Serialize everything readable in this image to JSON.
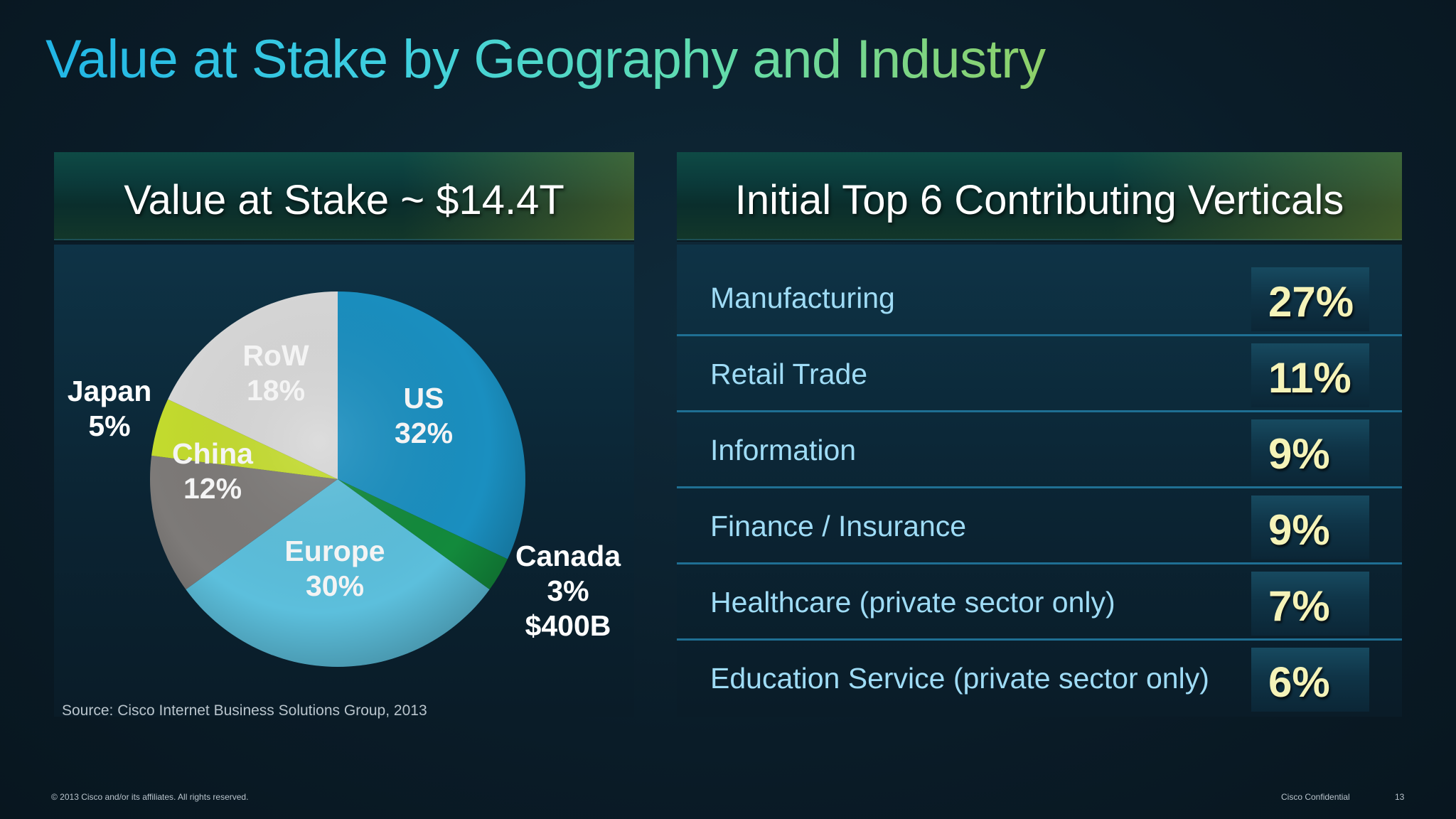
{
  "title": "Value at Stake by Geography and Industry",
  "left_panel": {
    "header": "Value at Stake ~ $14.4T",
    "source": "Source: Cisco Internet Business Solutions Group, 2013"
  },
  "right_panel": {
    "header": "Initial Top 6 Contributing Verticals",
    "rows": [
      {
        "label": "Manufacturing",
        "value": "27%"
      },
      {
        "label": "Retail Trade",
        "value": "11%"
      },
      {
        "label": "Information",
        "value": "9%"
      },
      {
        "label": "Finance / Insurance",
        "value": "9%"
      },
      {
        "label": "Healthcare (private sector only)",
        "value": "7%"
      },
      {
        "label": "Education Service (private sector only)",
        "value": "6%"
      }
    ]
  },
  "chart_data": {
    "type": "pie",
    "title": "Value at Stake ~ $14.4T",
    "slices": [
      {
        "name": "US",
        "value": 32,
        "label": "32%",
        "color": "#1a8fc0"
      },
      {
        "name": "Canada",
        "value": 3,
        "label": "3%",
        "extra": "$400B",
        "color": "#138a3c"
      },
      {
        "name": "Europe",
        "value": 30,
        "label": "30%",
        "color": "#5cbfdc"
      },
      {
        "name": "China",
        "value": 12,
        "label": "12%",
        "color": "#7d7a78"
      },
      {
        "name": "Japan",
        "value": 5,
        "label": "5%",
        "color": "#c4dc2e"
      },
      {
        "name": "RoW",
        "value": 18,
        "label": "18%",
        "color": "#d8d8d8"
      }
    ]
  },
  "footer": {
    "copyright": "© 2013 Cisco and/or its affiliates. All rights reserved.",
    "confidential": "Cisco Confidential",
    "page": "13"
  }
}
